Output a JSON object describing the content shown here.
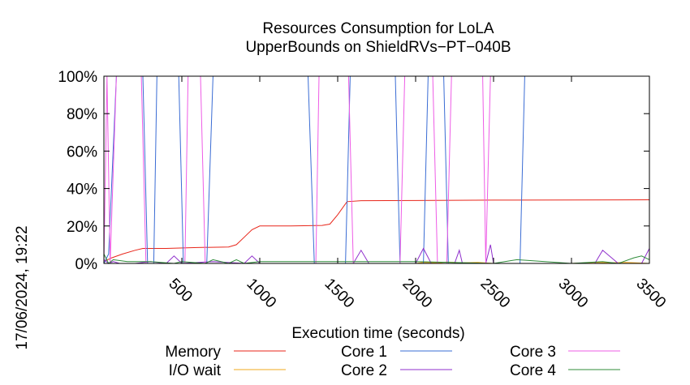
{
  "timestamp": "17/06/2024, 19:22",
  "chart_data": {
    "type": "line",
    "title": "Resources Consumption for LoLA",
    "subtitle": "UpperBounds on ShieldRVs−PT−040B",
    "xlabel": "Execution time (seconds)",
    "ylabel": "",
    "xlim": [
      0,
      3500
    ],
    "ylim": [
      0,
      100
    ],
    "x_ticks": [
      500,
      1000,
      1500,
      2000,
      2500,
      3000,
      3500
    ],
    "x_tick_labels": [
      "500",
      "1000",
      "1500",
      "2000",
      "2500",
      "3000",
      "3500"
    ],
    "y_ticks": [
      0,
      20,
      40,
      60,
      80,
      100
    ],
    "y_tick_labels": [
      "0%",
      "20%",
      "40%",
      "60%",
      "80%",
      "100%"
    ],
    "grid": false,
    "legend_position": "bottom",
    "series": [
      {
        "name": "Memory",
        "color": "#e8261a",
        "x": [
          0,
          50,
          120,
          200,
          250,
          400,
          600,
          800,
          850,
          900,
          950,
          1000,
          1200,
          1400,
          1450,
          1500,
          1560,
          1650,
          2000,
          2500,
          3000,
          3500
        ],
        "values": [
          1,
          3,
          5,
          7,
          8,
          8,
          8.5,
          8.8,
          10,
          14,
          18,
          20,
          20,
          20.3,
          21,
          26,
          33,
          33.5,
          33.6,
          33.8,
          33.9,
          34
        ]
      },
      {
        "name": "I/O wait",
        "color": "#f2a81d",
        "x": [
          0,
          500,
          1000,
          1500,
          1800,
          2000,
          2050,
          2150,
          2200,
          2300,
          2400,
          2500,
          2600,
          3000,
          3150,
          3250,
          3350,
          3500
        ],
        "values": [
          0,
          0,
          0,
          0,
          0,
          0,
          0.5,
          0.3,
          0.8,
          0.3,
          0.5,
          0,
          0,
          0,
          0.5,
          0.3,
          0.5,
          0
        ]
      },
      {
        "name": "Core 1",
        "color": "#3a6cd4",
        "x": [
          0,
          30,
          80,
          250,
          280,
          320,
          340,
          480,
          510,
          660,
          700,
          730,
          1310,
          1350,
          1550,
          1580,
          1870,
          1900,
          2050,
          2080,
          2180,
          2210,
          2670,
          2700,
          3500
        ],
        "values": [
          0,
          5,
          100,
          100,
          0,
          0,
          100,
          100,
          0,
          0,
          100,
          100,
          100,
          0,
          0,
          100,
          100,
          0,
          0,
          100,
          100,
          0,
          0,
          100,
          100
        ]
      },
      {
        "name": "Core 2",
        "color": "#8f2fcc",
        "x": [
          0,
          30,
          60,
          100,
          200,
          300,
          400,
          450,
          500,
          700,
          900,
          950,
          1000,
          1500,
          1600,
          1650,
          1700,
          2000,
          2050,
          2100,
          2250,
          2280,
          2300,
          2450,
          2480,
          2500,
          3000,
          3150,
          3200,
          3300,
          3450,
          3500
        ],
        "values": [
          2,
          0,
          1,
          0,
          0,
          1,
          0,
          4,
          0,
          1,
          0,
          4,
          0,
          0,
          0,
          7,
          0,
          0,
          8,
          0,
          0,
          7,
          0,
          0,
          10,
          0,
          0,
          0,
          7,
          0,
          0,
          8
        ]
      },
      {
        "name": "Core 3",
        "color": "#ee5ce6",
        "x": [
          0,
          20,
          40,
          80,
          240,
          270,
          300,
          520,
          540,
          620,
          650,
          670,
          1360,
          1380,
          1570,
          1600,
          1900,
          1930,
          2110,
          2140,
          2200,
          2230,
          2430,
          2450,
          2480,
          2500,
          3500
        ],
        "values": [
          0,
          100,
          0,
          100,
          100,
          0,
          0,
          0,
          100,
          100,
          0,
          0,
          0,
          100,
          100,
          0,
          0,
          100,
          100,
          0,
          0,
          100,
          100,
          0,
          100,
          100,
          100
        ]
      },
      {
        "name": "Core 4",
        "color": "#2f8c3a",
        "x": [
          0,
          30,
          60,
          150,
          300,
          450,
          500,
          650,
          700,
          800,
          850,
          900,
          1000,
          1500,
          2000,
          2500,
          2650,
          3000,
          3200,
          3300,
          3400,
          3450,
          3500
        ],
        "values": [
          5,
          0,
          2,
          1,
          1,
          0,
          1,
          0,
          2,
          0,
          2,
          0,
          1,
          1,
          1,
          0,
          2,
          0,
          1,
          0,
          3,
          4,
          2
        ]
      }
    ]
  }
}
